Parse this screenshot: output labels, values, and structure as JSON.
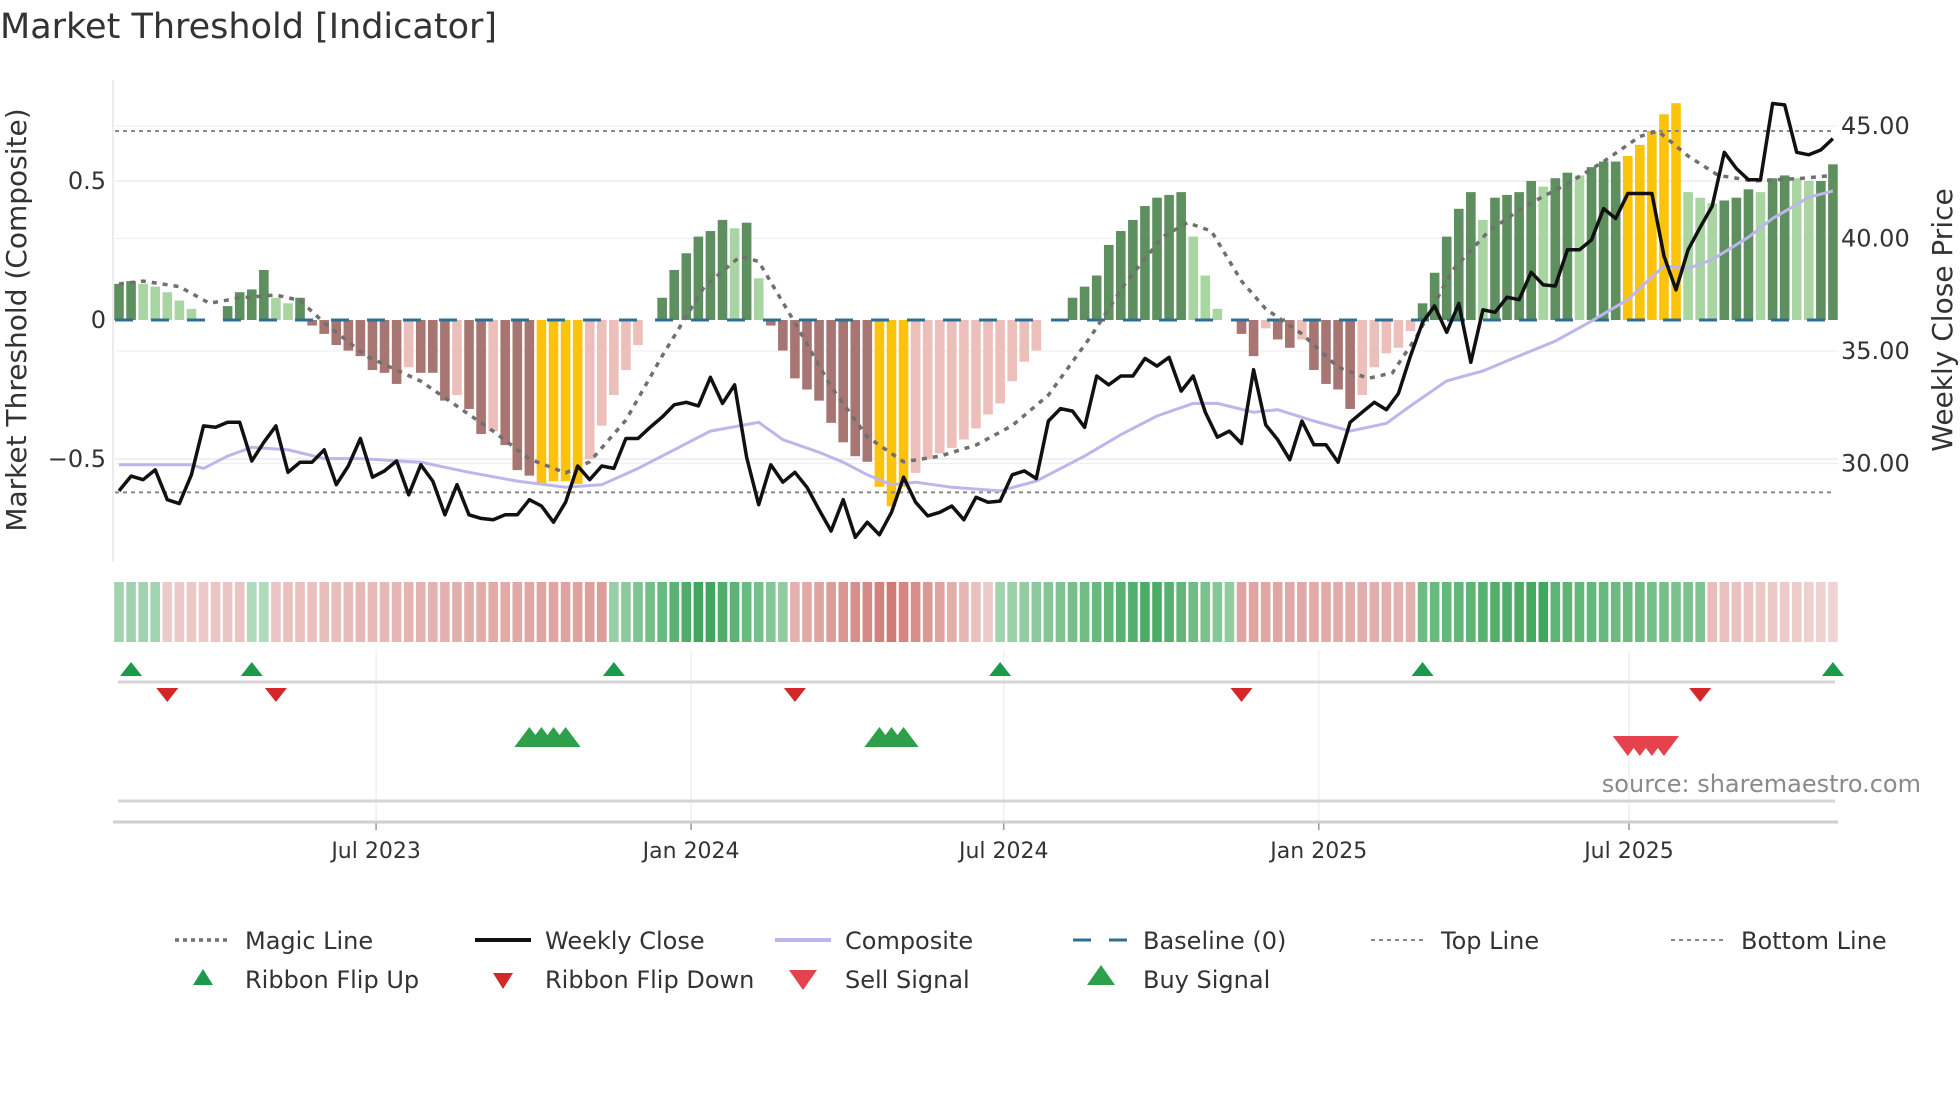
{
  "chart_data": {
    "type": "bar",
    "title": "Market Threshold [Indicator]",
    "ylabel_left": "Market Threshold (Composite)",
    "ylabel_right": "Weekly Close Price",
    "source": "source: sharemaestro.com",
    "ylim_left": [
      -0.85,
      0.85
    ],
    "ylim_right": [
      25.5,
      47.5
    ],
    "left_ticks": [
      {
        "v": 0.5,
        "label": "0.5"
      },
      {
        "v": 0,
        "label": "0"
      },
      {
        "v": -0.5,
        "label": "−0.5"
      }
    ],
    "right_ticks": [
      {
        "v": 45,
        "label": "45.00"
      },
      {
        "v": 40,
        "label": "40.00"
      },
      {
        "v": 35,
        "label": "35.00"
      },
      {
        "v": 30,
        "label": "30.00"
      }
    ],
    "x_ticks": [
      {
        "week": 21.3,
        "label": "Jul 2023"
      },
      {
        "week": 47.4,
        "label": "Jan 2024"
      },
      {
        "week": 73.3,
        "label": "Jul 2024"
      },
      {
        "week": 99.4,
        "label": "Jan 2025"
      },
      {
        "week": 125.1,
        "label": "Jul 2025"
      }
    ],
    "top_line": 0.68,
    "bottom_line": -0.62,
    "baseline": 0,
    "composite_bars": [
      0.13,
      0.14,
      0.13,
      0.12,
      0.1,
      0.07,
      0.04,
      0.0,
      0.0,
      0.05,
      0.1,
      0.11,
      0.18,
      0.08,
      0.06,
      0.08,
      -0.02,
      -0.05,
      -0.09,
      -0.11,
      -0.13,
      -0.18,
      -0.19,
      -0.23,
      -0.17,
      -0.19,
      -0.19,
      -0.29,
      -0.27,
      -0.32,
      -0.41,
      -0.4,
      -0.45,
      -0.54,
      -0.56,
      -0.59,
      -0.58,
      -0.58,
      -0.59,
      -0.5,
      -0.38,
      -0.27,
      -0.18,
      -0.09,
      0.0,
      0.08,
      0.18,
      0.24,
      0.3,
      0.32,
      0.36,
      0.33,
      0.35,
      0.15,
      -0.02,
      -0.11,
      -0.21,
      -0.25,
      -0.29,
      -0.37,
      -0.44,
      -0.49,
      -0.51,
      -0.6,
      -0.67,
      -0.6,
      -0.55,
      -0.5,
      -0.48,
      -0.46,
      -0.43,
      -0.39,
      -0.34,
      -0.3,
      -0.22,
      -0.15,
      -0.11,
      0.0,
      0.0,
      0.08,
      0.12,
      0.16,
      0.27,
      0.32,
      0.36,
      0.41,
      0.44,
      0.45,
      0.46,
      0.3,
      0.16,
      0.04,
      0.0,
      -0.05,
      -0.13,
      -0.03,
      -0.07,
      -0.1,
      -0.07,
      -0.18,
      -0.23,
      -0.25,
      -0.32,
      -0.27,
      -0.17,
      -0.12,
      -0.1,
      -0.04,
      0.06,
      0.17,
      0.3,
      0.4,
      0.46,
      0.36,
      0.44,
      0.45,
      0.46,
      0.5,
      0.48,
      0.51,
      0.53,
      0.52,
      0.55,
      0.57,
      0.57,
      0.59,
      0.63,
      0.68,
      0.74,
      0.78,
      0.46,
      0.44,
      0.42,
      0.43,
      0.44,
      0.47,
      0.46,
      0.51,
      0.52,
      0.51,
      0.5,
      0.5,
      0.56
    ],
    "weekly_close": [
      28.78,
      29.44,
      29.28,
      29.72,
      28.39,
      28.22,
      29.5,
      31.67,
      31.61,
      31.83,
      31.83,
      30.11,
      30.94,
      31.67,
      29.61,
      30.06,
      30.06,
      30.61,
      29.06,
      29.89,
      31.11,
      29.39,
      29.67,
      30.11,
      28.61,
      29.94,
      29.22,
      27.72,
      29.06,
      27.72,
      27.56,
      27.5,
      27.72,
      27.72,
      28.39,
      28.11,
      27.39,
      28.28,
      29.89,
      29.28,
      29.89,
      29.78,
      31.11,
      31.11,
      31.61,
      32.06,
      32.61,
      32.72,
      32.56,
      33.83,
      32.67,
      33.5,
      30.28,
      28.17,
      29.94,
      29.17,
      29.61,
      28.94,
      27.94,
      27.0,
      28.39,
      26.72,
      27.39,
      26.83,
      27.83,
      29.39,
      28.28,
      27.67,
      27.83,
      28.11,
      27.5,
      28.5,
      28.28,
      28.33,
      29.5,
      29.67,
      29.33,
      31.89,
      32.44,
      32.33,
      31.61,
      33.89,
      33.5,
      33.89,
      33.89,
      34.67,
      34.33,
      34.72,
      33.22,
      33.89,
      32.28,
      31.17,
      31.44,
      30.89,
      34.17,
      31.72,
      31.06,
      30.17,
      31.89,
      30.83,
      30.83,
      30.06,
      31.83,
      32.28,
      32.72,
      32.39,
      33.11,
      34.78,
      36.28,
      37.0,
      35.83,
      37.11,
      34.5,
      36.83,
      36.72,
      37.39,
      37.28,
      38.5,
      37.94,
      37.89,
      39.5,
      39.5,
      39.94,
      41.33,
      40.89,
      42.0,
      42.0,
      42.0,
      39.22,
      37.72,
      39.5,
      40.5,
      41.44,
      43.83,
      43.11,
      42.61,
      42.61,
      46.0,
      45.94,
      43.83,
      43.72,
      43.94,
      44.44
    ],
    "composite_line": [
      [
        0,
        29.94
      ],
      [
        6,
        29.94
      ],
      [
        7,
        29.78
      ],
      [
        9,
        30.33
      ],
      [
        11,
        30.72
      ],
      [
        14,
        30.61
      ],
      [
        17,
        30.22
      ],
      [
        20,
        30.22
      ],
      [
        25,
        30.06
      ],
      [
        29,
        29.61
      ],
      [
        33,
        29.22
      ],
      [
        37,
        28.94
      ],
      [
        40,
        29.06
      ],
      [
        43,
        29.78
      ],
      [
        46,
        30.61
      ],
      [
        49,
        31.44
      ],
      [
        53,
        31.83
      ],
      [
        55,
        31.06
      ],
      [
        58,
        30.5
      ],
      [
        60,
        30.06
      ],
      [
        62,
        29.5
      ],
      [
        64,
        29.06
      ],
      [
        66,
        29.17
      ],
      [
        69,
        28.94
      ],
      [
        73,
        28.78
      ],
      [
        76,
        29.22
      ],
      [
        80,
        30.33
      ],
      [
        83,
        31.28
      ],
      [
        86,
        32.11
      ],
      [
        89,
        32.67
      ],
      [
        91,
        32.67
      ],
      [
        94,
        32.28
      ],
      [
        96,
        32.39
      ],
      [
        99,
        31.89
      ],
      [
        102,
        31.44
      ],
      [
        105,
        31.78
      ],
      [
        107,
        32.56
      ],
      [
        110,
        33.67
      ],
      [
        113,
        34.11
      ],
      [
        116,
        34.78
      ],
      [
        119,
        35.44
      ],
      [
        122,
        36.33
      ],
      [
        125,
        37.28
      ],
      [
        128,
        38.78
      ],
      [
        130,
        38.67
      ],
      [
        132,
        39.06
      ],
      [
        135,
        40.06
      ],
      [
        137,
        40.89
      ],
      [
        140,
        41.83
      ],
      [
        142,
        42.11
      ]
    ],
    "magic_line": [
      [
        0,
        0.13
      ],
      [
        2,
        0.14
      ],
      [
        5,
        0.12
      ],
      [
        7.5,
        0.06
      ],
      [
        10,
        0.08
      ],
      [
        13,
        0.09
      ],
      [
        15,
        0.07
      ],
      [
        17,
        -0.01
      ],
      [
        20.5,
        -0.13
      ],
      [
        25,
        -0.22
      ],
      [
        28,
        -0.31
      ],
      [
        31,
        -0.4
      ],
      [
        34,
        -0.5
      ],
      [
        37,
        -0.55
      ],
      [
        39,
        -0.51
      ],
      [
        42,
        -0.36
      ],
      [
        45,
        -0.13
      ],
      [
        48.5,
        0.12
      ],
      [
        51.5,
        0.23
      ],
      [
        53,
        0.21
      ],
      [
        56,
        -0.01
      ],
      [
        59,
        -0.24
      ],
      [
        62,
        -0.42
      ],
      [
        65,
        -0.51
      ],
      [
        68,
        -0.49
      ],
      [
        71,
        -0.45
      ],
      [
        74,
        -0.38
      ],
      [
        77,
        -0.27
      ],
      [
        80.5,
        -0.06
      ],
      [
        83.5,
        0.14
      ],
      [
        86.5,
        0.3
      ],
      [
        88.5,
        0.35
      ],
      [
        90.5,
        0.32
      ],
      [
        93,
        0.14
      ],
      [
        95,
        0.04
      ],
      [
        98,
        -0.05
      ],
      [
        101,
        -0.17
      ],
      [
        103.5,
        -0.21
      ],
      [
        105.5,
        -0.19
      ],
      [
        107.5,
        -0.06
      ],
      [
        110.5,
        0.18
      ],
      [
        113.5,
        0.32
      ],
      [
        116.5,
        0.41
      ],
      [
        120,
        0.49
      ],
      [
        123,
        0.57
      ],
      [
        126,
        0.66
      ],
      [
        127.5,
        0.68
      ],
      [
        130,
        0.59
      ],
      [
        132.5,
        0.52
      ],
      [
        135.5,
        0.5
      ],
      [
        139.5,
        0.51
      ],
      [
        142,
        0.52
      ]
    ],
    "ribbon_segments": [
      [
        0,
        3,
        0.3,
        0.3
      ],
      [
        4,
        10,
        -0.2,
        -0.25
      ],
      [
        11,
        12,
        0.22,
        0.22
      ],
      [
        13,
        40,
        -0.25,
        -0.55
      ],
      [
        41,
        48,
        0.35,
        0.85
      ],
      [
        49,
        55,
        0.85,
        0.4
      ],
      [
        56,
        64,
        -0.4,
        -0.85
      ],
      [
        65,
        72,
        -0.75,
        -0.2
      ],
      [
        73,
        85,
        0.3,
        0.8
      ],
      [
        86,
        92,
        0.8,
        0.4
      ],
      [
        93,
        107,
        -0.5,
        -0.4
      ],
      [
        108,
        118,
        0.6,
        0.85
      ],
      [
        119,
        131,
        0.7,
        0.5
      ],
      [
        132,
        142,
        -0.3,
        -0.12
      ]
    ],
    "ribbon_flip_up": [
      1,
      11,
      41,
      73,
      108,
      142
    ],
    "ribbon_flip_down": [
      4,
      13,
      56,
      93,
      131
    ],
    "buy_signals": [
      34,
      35,
      36,
      37,
      63,
      64,
      65
    ],
    "sell_signals": [
      125,
      126,
      127,
      128
    ],
    "legend": [
      {
        "key": "magic",
        "label": "Magic Line"
      },
      {
        "key": "close",
        "label": "Weekly Close"
      },
      {
        "key": "composite",
        "label": "Composite"
      },
      {
        "key": "baseline",
        "label": "Baseline (0)"
      },
      {
        "key": "top",
        "label": "Top Line"
      },
      {
        "key": "bottom",
        "label": "Bottom Line"
      },
      {
        "key": "flipup",
        "label": "Ribbon Flip Up"
      },
      {
        "key": "flipdown",
        "label": "Ribbon Flip Down"
      },
      {
        "key": "sell",
        "label": "Sell Signal"
      },
      {
        "key": "buy",
        "label": "Buy Signal"
      }
    ],
    "colors": {
      "dark_green": "#5e8f5e",
      "light_green": "#a8d5a2",
      "dark_red": "#a87672",
      "light_red": "#ecbfba",
      "yellow": "#fbc30a",
      "close": "#111111",
      "composite": "#bdb6ea",
      "magic": "#707070",
      "baseline": "#2e6f96",
      "flip_up": "#1a9a4a",
      "flip_down": "#d62728",
      "buy": "#2ea04a",
      "sell": "#e5424d"
    }
  }
}
